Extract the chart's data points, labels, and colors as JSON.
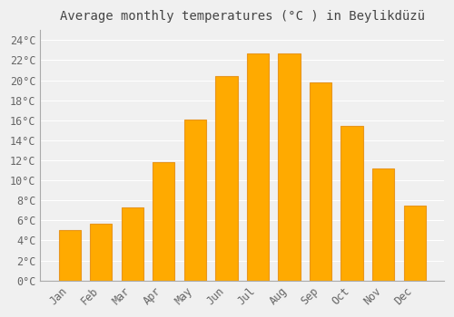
{
  "title": "Average monthly temperatures (°C ) in Beylikdüzü",
  "months": [
    "Jan",
    "Feb",
    "Mar",
    "Apr",
    "May",
    "Jun",
    "Jul",
    "Aug",
    "Sep",
    "Oct",
    "Nov",
    "Dec"
  ],
  "values": [
    5.0,
    5.7,
    7.3,
    11.8,
    16.1,
    20.4,
    22.7,
    22.7,
    19.8,
    15.4,
    11.2,
    7.5
  ],
  "bar_color": "#FFAA00",
  "bar_edge_color": "#E8961E",
  "background_color": "#f0f0f0",
  "plot_bg_color": "#f0f0f0",
  "grid_color": "#ffffff",
  "ylim": [
    0,
    25
  ],
  "yticks": [
    0,
    2,
    4,
    6,
    8,
    10,
    12,
    14,
    16,
    18,
    20,
    22,
    24
  ],
  "title_fontsize": 10,
  "tick_fontsize": 8.5,
  "title_color": "#444444",
  "tick_color": "#666666"
}
